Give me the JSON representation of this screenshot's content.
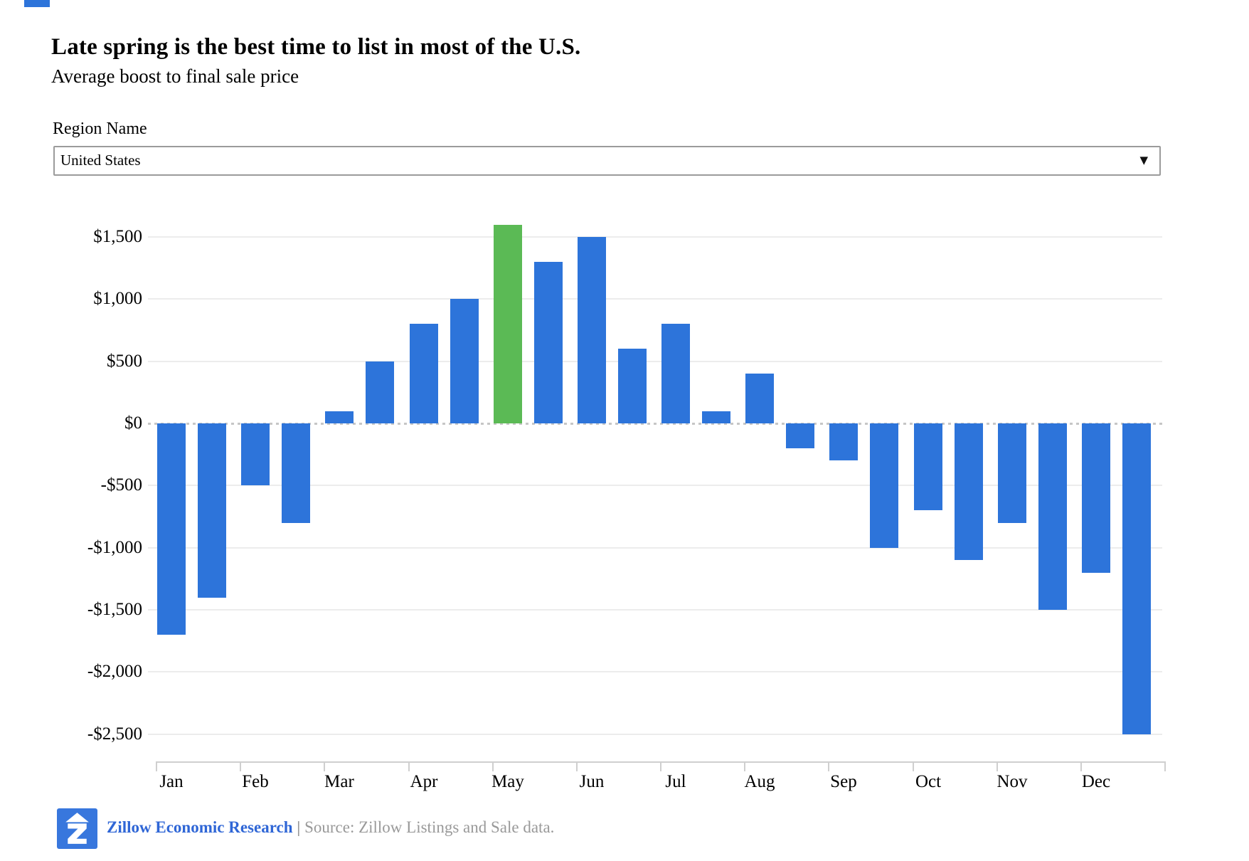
{
  "artifact": {
    "note": "small blue fragment at top-left edge"
  },
  "header": {
    "title": "Late spring is the best time to list in most of the U.S.",
    "subtitle": "Average boost to final sale price"
  },
  "region_filter": {
    "label": "Region Name",
    "selected_value": "United States",
    "dropdown_icon": "chevron-down-icon"
  },
  "chart_data": {
    "type": "bar",
    "title": "Late spring is the best time to list in most of the U.S.",
    "subtitle": "Average boost to final sale price",
    "unit": "USD boost to final sale price",
    "categories": [
      "Jan",
      "Feb",
      "Mar",
      "Apr",
      "May",
      "Jun",
      "Jul",
      "Aug",
      "Sep",
      "Oct",
      "Nov",
      "Dec"
    ],
    "bars_per_month": 2,
    "bars": [
      {
        "month": "Jan",
        "half": 1,
        "value": -1700
      },
      {
        "month": "Jan",
        "half": 2,
        "value": -1400
      },
      {
        "month": "Feb",
        "half": 1,
        "value": -500
      },
      {
        "month": "Feb",
        "half": 2,
        "value": -800
      },
      {
        "month": "Mar",
        "half": 1,
        "value": 100
      },
      {
        "month": "Mar",
        "half": 2,
        "value": 500
      },
      {
        "month": "Apr",
        "half": 1,
        "value": 800
      },
      {
        "month": "Apr",
        "half": 2,
        "value": 1000
      },
      {
        "month": "May",
        "half": 1,
        "value": 1600,
        "highlight": true
      },
      {
        "month": "May",
        "half": 2,
        "value": 1300
      },
      {
        "month": "Jun",
        "half": 1,
        "value": 1500
      },
      {
        "month": "Jun",
        "half": 2,
        "value": 600
      },
      {
        "month": "Jul",
        "half": 1,
        "value": 800
      },
      {
        "month": "Jul",
        "half": 2,
        "value": 100
      },
      {
        "month": "Aug",
        "half": 1,
        "value": 400
      },
      {
        "month": "Aug",
        "half": 2,
        "value": -200
      },
      {
        "month": "Sep",
        "half": 1,
        "value": -300
      },
      {
        "month": "Sep",
        "half": 2,
        "value": -1000
      },
      {
        "month": "Oct",
        "half": 1,
        "value": -700
      },
      {
        "month": "Oct",
        "half": 2,
        "value": -1100
      },
      {
        "month": "Nov",
        "half": 1,
        "value": -800
      },
      {
        "month": "Nov",
        "half": 2,
        "value": -1500
      },
      {
        "month": "Dec",
        "half": 1,
        "value": -1200
      },
      {
        "month": "Dec",
        "half": 2,
        "value": -2500
      }
    ],
    "yticks": [
      "$1,500",
      "$1,000",
      "$500",
      "$0",
      "-$500",
      "-$1,000",
      "-$1,500",
      "-$2,000",
      "-$2,500"
    ],
    "ytick_values": [
      1500,
      1000,
      500,
      0,
      -500,
      -1000,
      -1500,
      -2000,
      -2500
    ],
    "ylim": [
      -2500,
      1600
    ],
    "grid": "horizontal",
    "zero_line": "dotted",
    "legend": "none",
    "xlabel": "",
    "ylabel": ""
  },
  "colors": {
    "bar": "#2d74da",
    "highlight": "#5bba55",
    "gridline": "#ececec",
    "zero_line": "#c6c6c6",
    "axis": "#cfcfcf",
    "logo_background": "#3877dd",
    "footer_brand_blue": "#2f66d6",
    "footer_gray": "#999999"
  },
  "footer": {
    "brand": "Zillow Economic Research",
    "separator": "|",
    "source": "Source: Zillow Listings and Sale data.",
    "logo_icon": "zillow-logo-icon"
  }
}
